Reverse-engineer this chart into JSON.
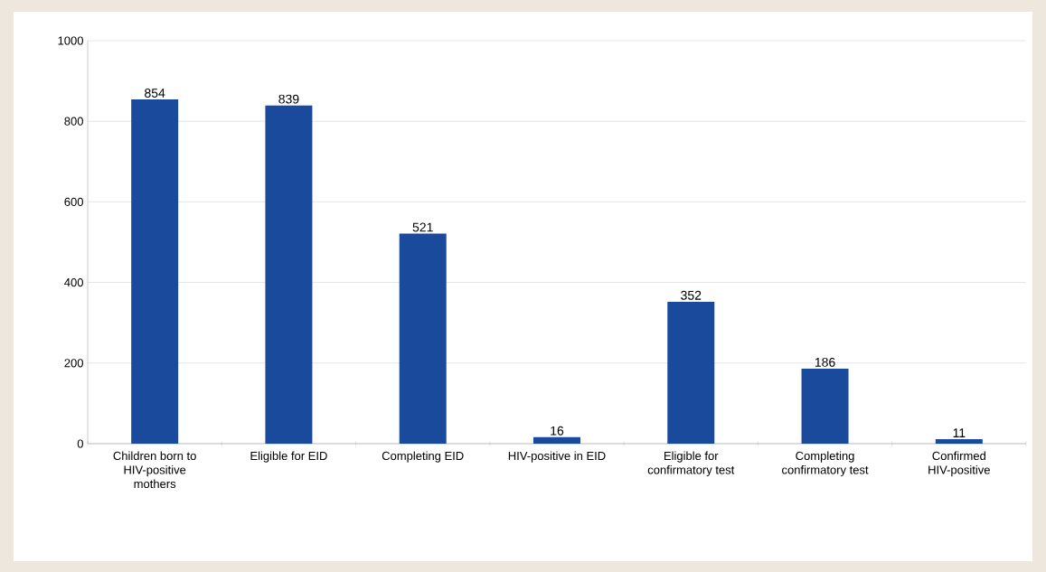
{
  "chart_data": {
    "type": "bar",
    "categories": [
      "Children born to HIV-positive mothers",
      "Eligible for EID",
      "Completing EID",
      "HIV-positive in EID",
      "Eligible for confirmatory test",
      "Completing confirmatory test",
      "Confirmed HIV-positive"
    ],
    "values": [
      854,
      839,
      521,
      16,
      352,
      186,
      11
    ],
    "color": "#1a4a9c",
    "ylim": [
      0,
      1000
    ],
    "yticks": [
      0,
      200,
      400,
      600,
      800,
      1000
    ],
    "grid": "y",
    "data_labels": true
  }
}
